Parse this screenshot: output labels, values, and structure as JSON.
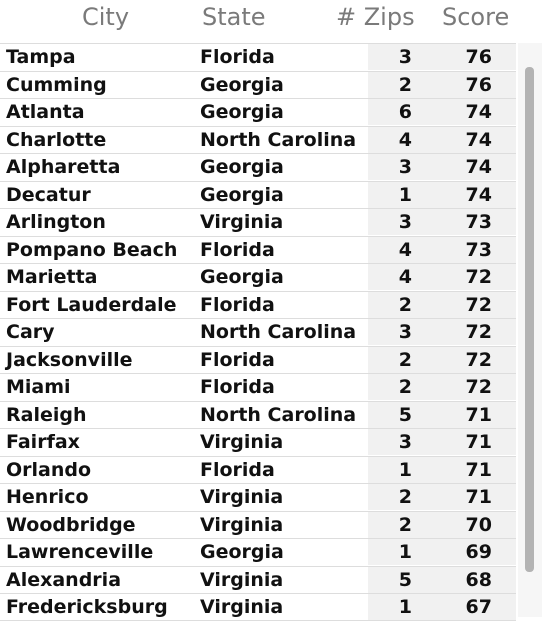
{
  "header": {
    "city": "City",
    "state": "State",
    "zips": "# Zips",
    "score": "Score"
  },
  "rows": [
    {
      "city": "Tampa",
      "state": "Florida",
      "zips": "3",
      "score": "76"
    },
    {
      "city": "Cumming",
      "state": "Georgia",
      "zips": "2",
      "score": "76"
    },
    {
      "city": "Atlanta",
      "state": "Georgia",
      "zips": "6",
      "score": "74"
    },
    {
      "city": "Charlotte",
      "state": "North Carolina",
      "zips": "4",
      "score": "74"
    },
    {
      "city": "Alpharetta",
      "state": "Georgia",
      "zips": "3",
      "score": "74"
    },
    {
      "city": "Decatur",
      "state": "Georgia",
      "zips": "1",
      "score": "74"
    },
    {
      "city": "Arlington",
      "state": "Virginia",
      "zips": "3",
      "score": "73"
    },
    {
      "city": "Pompano Beach",
      "state": "Florida",
      "zips": "4",
      "score": "73"
    },
    {
      "city": "Marietta",
      "state": "Georgia",
      "zips": "4",
      "score": "72"
    },
    {
      "city": "Fort Lauderdale",
      "state": "Florida",
      "zips": "2",
      "score": "72"
    },
    {
      "city": "Cary",
      "state": "North Carolina",
      "zips": "3",
      "score": "72"
    },
    {
      "city": "Jacksonville",
      "state": "Florida",
      "zips": "2",
      "score": "72"
    },
    {
      "city": "Miami",
      "state": "Florida",
      "zips": "2",
      "score": "72"
    },
    {
      "city": "Raleigh",
      "state": "North Carolina",
      "zips": "5",
      "score": "71"
    },
    {
      "city": "Fairfax",
      "state": "Virginia",
      "zips": "3",
      "score": "71"
    },
    {
      "city": "Orlando",
      "state": "Florida",
      "zips": "1",
      "score": "71"
    },
    {
      "city": "Henrico",
      "state": "Virginia",
      "zips": "2",
      "score": "71"
    },
    {
      "city": "Woodbridge",
      "state": "Virginia",
      "zips": "2",
      "score": "70"
    },
    {
      "city": "Lawrenceville",
      "state": "Georgia",
      "zips": "1",
      "score": "69"
    },
    {
      "city": "Alexandria",
      "state": "Virginia",
      "zips": "5",
      "score": "68"
    },
    {
      "city": "Fredericksburg",
      "state": "Virginia",
      "zips": "1",
      "score": "67"
    }
  ],
  "colors": {
    "header_text": "#7a7a7a",
    "cell_text": "#111111",
    "metric_cell_bg": "#f1f1f1",
    "scrollbar_thumb": "#b3b3b3"
  }
}
